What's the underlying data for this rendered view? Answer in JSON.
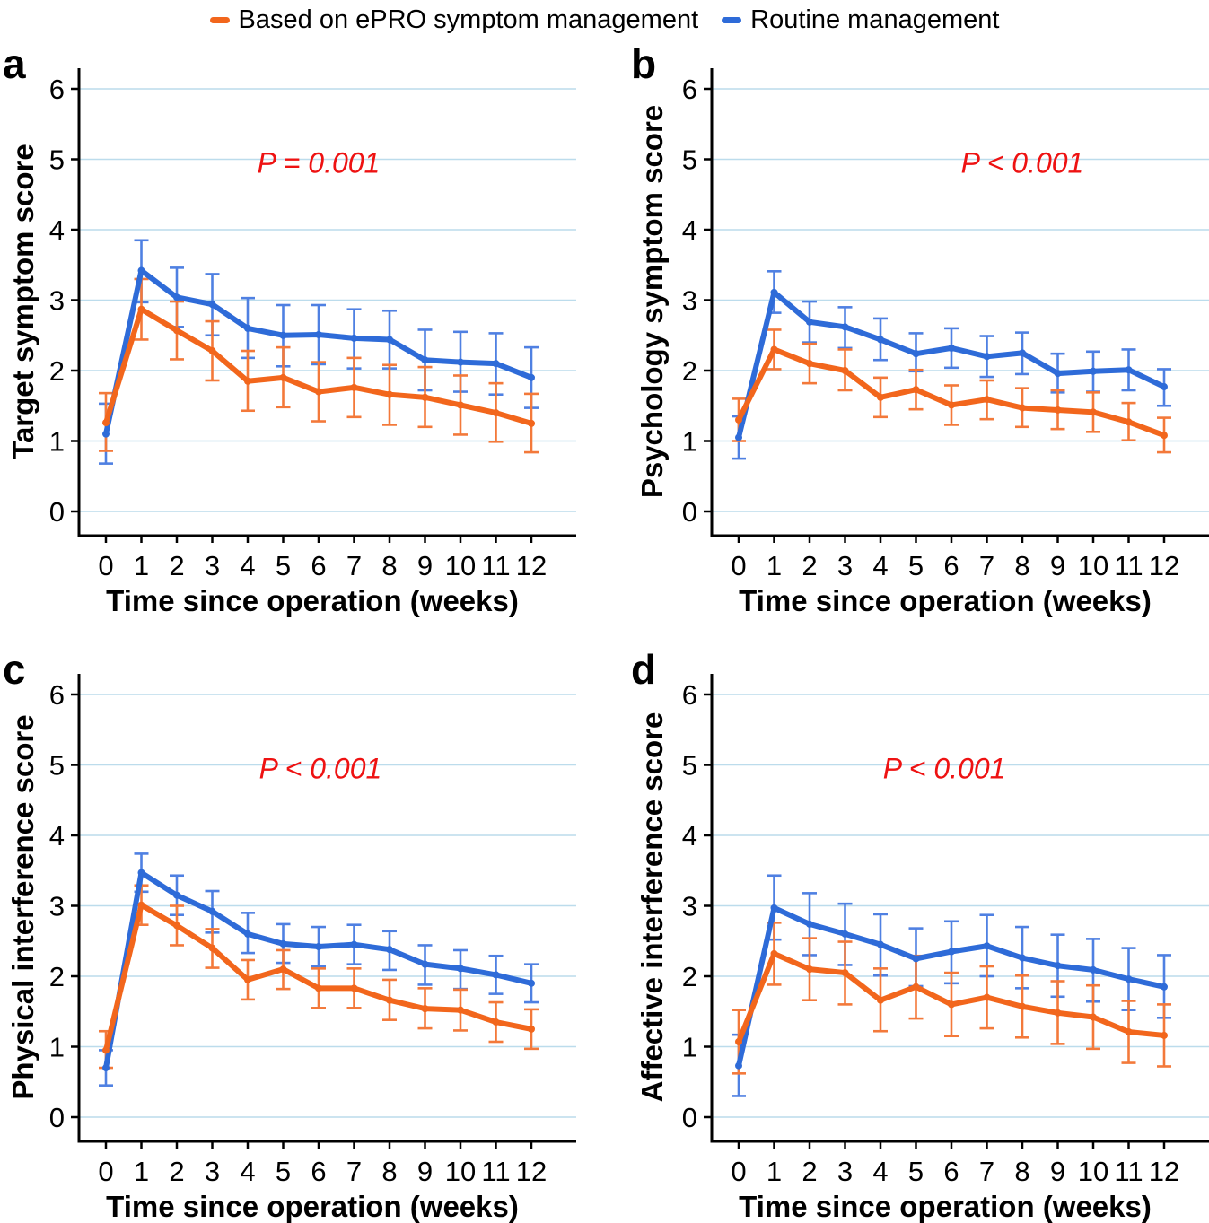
{
  "legend": {
    "items": [
      {
        "key": "epro",
        "label": "Based on ePRO symptom management"
      },
      {
        "key": "routine",
        "label": "Routine management"
      }
    ]
  },
  "axes": {
    "xlabel": "Time since operation (weeks)",
    "x_ticks": [
      "0",
      "1",
      "2",
      "3",
      "4",
      "5",
      "6",
      "7",
      "8",
      "9",
      "10",
      "11",
      "12"
    ],
    "y_ticks": [
      "0",
      "1",
      "2",
      "3",
      "4",
      "5",
      "6"
    ],
    "ylim": [
      0,
      6
    ],
    "grid": "horizontal"
  },
  "colors": {
    "epro": "#f2661c",
    "epro_err": "#f3793a",
    "routine": "#2e6bd8",
    "routine_err": "#4f80e2",
    "grid": "#bcdcec",
    "axis": "#000000",
    "p_value": "#ee1212"
  },
  "chart_data": [
    {
      "type": "line",
      "panel": "a",
      "title_y": "Target symptom score",
      "p_label": "P = 0.001",
      "p_pos": {
        "week": 6.0,
        "score": 4.95
      },
      "x": [
        0,
        1,
        2,
        3,
        4,
        5,
        6,
        7,
        8,
        9,
        10,
        11,
        12
      ],
      "series": [
        {
          "key": "routine",
          "name": "Routine management",
          "mean": [
            1.1,
            3.42,
            3.04,
            2.94,
            2.6,
            2.5,
            2.51,
            2.46,
            2.44,
            2.15,
            2.12,
            2.1,
            1.9
          ],
          "lo": [
            0.68,
            2.97,
            2.62,
            2.5,
            2.18,
            2.06,
            2.09,
            2.03,
            2.03,
            1.72,
            1.7,
            1.66,
            1.47
          ],
          "hi": [
            1.53,
            3.85,
            3.46,
            3.37,
            3.03,
            2.93,
            2.93,
            2.87,
            2.85,
            2.58,
            2.55,
            2.53,
            2.33
          ]
        },
        {
          "key": "epro",
          "name": "Based on ePRO symptom management",
          "mean": [
            1.26,
            2.87,
            2.57,
            2.28,
            1.85,
            1.9,
            1.7,
            1.76,
            1.66,
            1.62,
            1.51,
            1.4,
            1.25
          ],
          "lo": [
            0.86,
            2.44,
            2.16,
            1.86,
            1.43,
            1.48,
            1.28,
            1.34,
            1.23,
            1.2,
            1.09,
            0.99,
            0.84
          ],
          "hi": [
            1.68,
            3.3,
            2.98,
            2.7,
            2.28,
            2.33,
            2.12,
            2.18,
            2.08,
            2.05,
            1.93,
            1.82,
            1.67
          ]
        }
      ]
    },
    {
      "type": "line",
      "panel": "b",
      "title_y": "Psychology symptom score",
      "p_label": "P < 0.001",
      "p_pos": {
        "week": 8.0,
        "score": 4.95
      },
      "x": [
        0,
        1,
        2,
        3,
        4,
        5,
        6,
        7,
        8,
        9,
        10,
        11,
        12
      ],
      "series": [
        {
          "key": "routine",
          "name": "Routine management",
          "mean": [
            1.05,
            3.11,
            2.69,
            2.62,
            2.44,
            2.24,
            2.32,
            2.2,
            2.25,
            1.96,
            1.99,
            2.01,
            1.77
          ],
          "lo": [
            0.75,
            2.82,
            2.4,
            2.32,
            2.15,
            1.99,
            2.04,
            1.91,
            1.95,
            1.69,
            1.7,
            1.72,
            1.5
          ],
          "hi": [
            1.35,
            3.41,
            2.98,
            2.9,
            2.74,
            2.53,
            2.6,
            2.49,
            2.54,
            2.24,
            2.27,
            2.3,
            2.02
          ]
        },
        {
          "key": "epro",
          "name": "Based on ePRO symptom management",
          "mean": [
            1.3,
            2.3,
            2.1,
            2.0,
            1.62,
            1.73,
            1.51,
            1.59,
            1.47,
            1.44,
            1.41,
            1.27,
            1.08
          ],
          "lo": [
            1.0,
            2.02,
            1.82,
            1.72,
            1.34,
            1.45,
            1.23,
            1.31,
            1.2,
            1.17,
            1.13,
            1.01,
            0.84
          ],
          "hi": [
            1.6,
            2.58,
            2.38,
            2.3,
            1.9,
            2.01,
            1.79,
            1.86,
            1.75,
            1.72,
            1.69,
            1.54,
            1.33
          ]
        }
      ]
    },
    {
      "type": "line",
      "panel": "c",
      "title_y": "Physical interference score",
      "p_label": "P < 0.001",
      "p_pos": {
        "week": 6.05,
        "score": 4.95
      },
      "x": [
        0,
        1,
        2,
        3,
        4,
        5,
        6,
        7,
        8,
        9,
        10,
        11,
        12
      ],
      "series": [
        {
          "key": "routine",
          "name": "Routine management",
          "mean": [
            0.7,
            3.47,
            3.15,
            2.92,
            2.6,
            2.46,
            2.42,
            2.45,
            2.38,
            2.17,
            2.11,
            2.02,
            1.9
          ],
          "lo": [
            0.45,
            3.2,
            2.87,
            2.62,
            2.33,
            2.19,
            2.14,
            2.17,
            2.09,
            1.88,
            1.82,
            1.75,
            1.63
          ],
          "hi": [
            0.95,
            3.74,
            3.43,
            3.21,
            2.9,
            2.74,
            2.7,
            2.73,
            2.64,
            2.44,
            2.37,
            2.29,
            2.17
          ]
        },
        {
          "key": "epro",
          "name": "Based on ePRO symptom management",
          "mean": [
            0.95,
            3.01,
            2.72,
            2.4,
            1.95,
            2.1,
            1.83,
            1.83,
            1.66,
            1.54,
            1.52,
            1.35,
            1.25
          ],
          "lo": [
            0.7,
            2.73,
            2.44,
            2.12,
            1.67,
            1.82,
            1.55,
            1.55,
            1.38,
            1.26,
            1.23,
            1.07,
            0.97
          ],
          "hi": [
            1.22,
            3.29,
            3.0,
            2.67,
            2.23,
            2.37,
            2.11,
            2.11,
            1.95,
            1.83,
            1.81,
            1.63,
            1.53
          ]
        }
      ]
    },
    {
      "type": "line",
      "panel": "d",
      "title_y": "Affective interference score",
      "p_label": "P < 0.001",
      "p_pos": {
        "week": 5.8,
        "score": 4.95
      },
      "x": [
        0,
        1,
        2,
        3,
        4,
        5,
        6,
        7,
        8,
        9,
        10,
        11,
        12
      ],
      "series": [
        {
          "key": "routine",
          "name": "Routine management",
          "mean": [
            0.73,
            2.97,
            2.74,
            2.6,
            2.45,
            2.25,
            2.35,
            2.43,
            2.26,
            2.15,
            2.09,
            1.96,
            1.85
          ],
          "lo": [
            0.3,
            2.52,
            2.3,
            2.16,
            2.01,
            1.86,
            1.9,
            2.0,
            1.83,
            1.71,
            1.64,
            1.52,
            1.41
          ],
          "hi": [
            1.17,
            3.43,
            3.18,
            3.03,
            2.88,
            2.68,
            2.78,
            2.87,
            2.7,
            2.59,
            2.53,
            2.4,
            2.3
          ]
        },
        {
          "key": "epro",
          "name": "Based on ePRO symptom management",
          "mean": [
            1.07,
            2.32,
            2.1,
            2.05,
            1.66,
            1.85,
            1.6,
            1.7,
            1.57,
            1.48,
            1.42,
            1.21,
            1.16
          ],
          "lo": [
            0.62,
            1.88,
            1.66,
            1.6,
            1.22,
            1.4,
            1.15,
            1.26,
            1.13,
            1.04,
            0.97,
            0.77,
            0.72
          ],
          "hi": [
            1.52,
            2.76,
            2.54,
            2.49,
            2.11,
            2.29,
            2.05,
            2.14,
            2.01,
            1.93,
            1.87,
            1.65,
            1.6
          ]
        }
      ]
    }
  ]
}
